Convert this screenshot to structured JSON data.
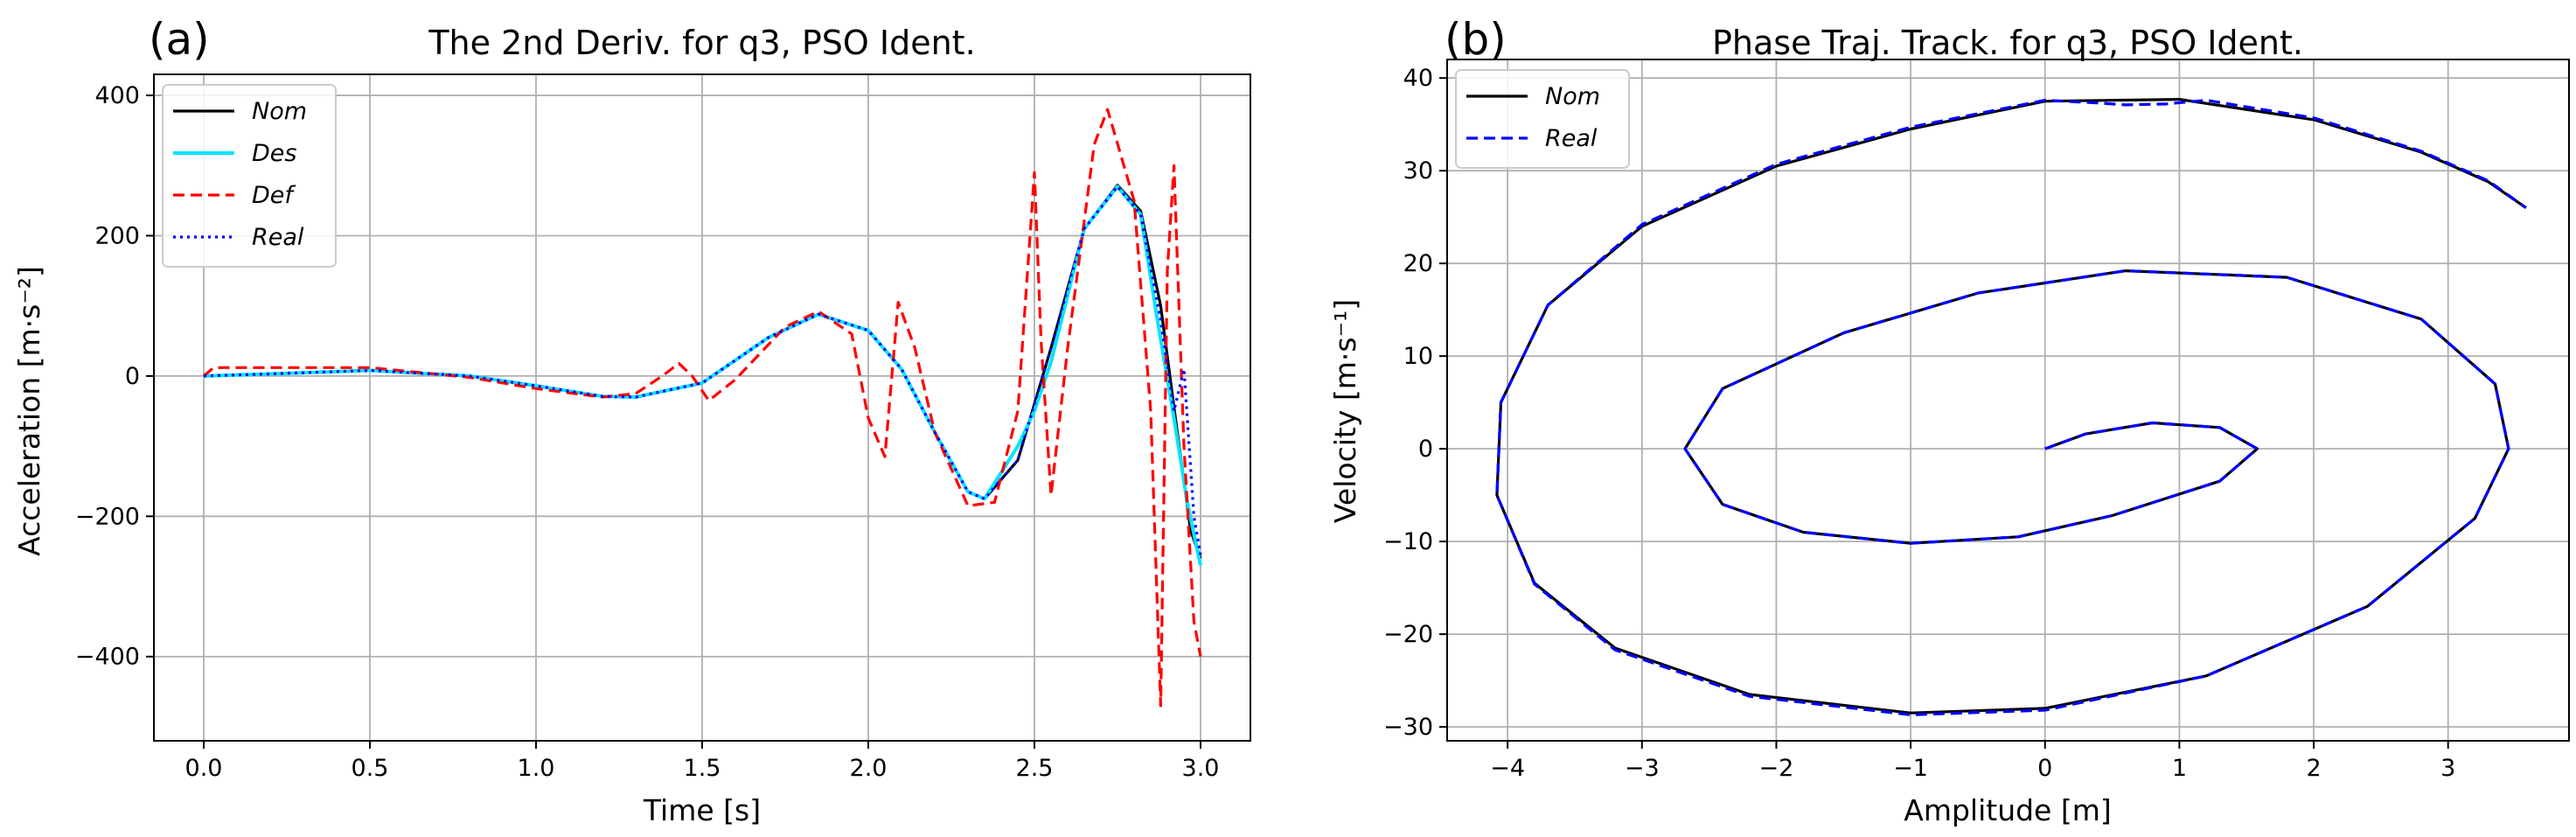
{
  "chart_data": [
    {
      "panel": "(a)",
      "type": "line",
      "title": "The 2nd Deriv. for q3, PSO Ident.",
      "xlabel": "Time [s]",
      "ylabel": "Acceleration [m·s⁻²]",
      "xlim": [
        -0.15,
        3.15
      ],
      "ylim": [
        -520,
        430
      ],
      "xticks": [
        0.0,
        0.5,
        1.0,
        1.5,
        2.0,
        2.5,
        3.0
      ],
      "xtick_labels": [
        "0.0",
        "0.5",
        "1.0",
        "1.5",
        "2.0",
        "2.5",
        "3.0"
      ],
      "yticks": [
        -400,
        -200,
        0,
        200,
        400
      ],
      "ytick_labels": [
        "−400",
        "−200",
        "0",
        "200",
        "400"
      ],
      "grid": true,
      "legend_position": "top-left",
      "series": [
        {
          "name": "Nom",
          "color": "#000000",
          "style": "solid",
          "x": [
            0.0,
            0.2,
            0.5,
            0.8,
            1.0,
            1.2,
            1.3,
            1.5,
            1.7,
            1.85,
            2.0,
            2.1,
            2.2,
            2.3,
            2.35,
            2.45,
            2.55,
            2.65,
            2.75,
            2.82,
            2.88,
            2.93,
            2.97,
            3.0
          ],
          "y": [
            0,
            3,
            8,
            0,
            -14,
            -29,
            -30,
            -10,
            55,
            88,
            65,
            10,
            -80,
            -165,
            -175,
            -120,
            40,
            210,
            272,
            235,
            100,
            -80,
            -220,
            -260
          ]
        },
        {
          "name": "Des",
          "color": "#00e5ff",
          "style": "solid",
          "x": [
            0.0,
            0.2,
            0.5,
            0.8,
            1.0,
            1.2,
            1.3,
            1.5,
            1.7,
            1.85,
            2.0,
            2.1,
            2.2,
            2.3,
            2.35,
            2.45,
            2.5,
            2.55,
            2.65,
            2.75,
            2.82,
            2.87,
            2.92,
            2.96,
            3.0
          ],
          "y": [
            0,
            3,
            8,
            0,
            -14,
            -29,
            -30,
            -10,
            55,
            88,
            65,
            10,
            -80,
            -165,
            -175,
            -100,
            -50,
            20,
            210,
            270,
            230,
            80,
            -60,
            -180,
            -270
          ]
        },
        {
          "name": "Def",
          "color": "#ff0000",
          "style": "dashed",
          "x": [
            0.0,
            0.03,
            0.2,
            0.5,
            0.8,
            1.0,
            1.2,
            1.3,
            1.38,
            1.43,
            1.47,
            1.52,
            1.6,
            1.75,
            1.85,
            1.95,
            2.0,
            2.05,
            2.09,
            2.14,
            2.2,
            2.3,
            2.38,
            2.45,
            2.5,
            2.52,
            2.55,
            2.6,
            2.68,
            2.72,
            2.8,
            2.85,
            2.88,
            2.9,
            2.92,
            2.95,
            2.98,
            3.0
          ],
          "y": [
            0,
            12,
            12,
            12,
            -2,
            -18,
            -30,
            -25,
            0,
            18,
            0,
            -35,
            -5,
            70,
            92,
            60,
            -60,
            -115,
            105,
            40,
            -80,
            -185,
            -180,
            -50,
            290,
            50,
            -170,
            40,
            330,
            380,
            250,
            -50,
            -470,
            150,
            300,
            -100,
            -350,
            -400
          ]
        },
        {
          "name": "Real",
          "color": "#0000ff",
          "style": "dotted",
          "x": [
            0.0,
            0.2,
            0.5,
            0.8,
            1.0,
            1.2,
            1.3,
            1.5,
            1.7,
            1.85,
            2.0,
            2.1,
            2.2,
            2.3,
            2.35,
            2.45,
            2.55,
            2.65,
            2.75,
            2.82,
            2.88,
            2.92,
            2.95,
            2.98,
            3.0
          ],
          "y": [
            0,
            3,
            8,
            0,
            -14,
            -29,
            -30,
            -10,
            55,
            88,
            65,
            10,
            -80,
            -165,
            -175,
            -120,
            40,
            210,
            270,
            230,
            80,
            -50,
            10,
            -200,
            -255
          ]
        }
      ]
    },
    {
      "panel": "(b)",
      "type": "line",
      "title": "Phase Traj. Track. for q3, PSO Ident.",
      "xlabel": "Amplitude [m]",
      "ylabel": "Velocity [m·s⁻¹]",
      "xlim": [
        -4.45,
        3.9
      ],
      "ylim": [
        -31.5,
        42
      ],
      "xticks": [
        -4,
        -3,
        -2,
        -1,
        0,
        1,
        2,
        3
      ],
      "xtick_labels": [
        "−4",
        "−3",
        "−2",
        "−1",
        "0",
        "1",
        "2",
        "3"
      ],
      "yticks": [
        -30,
        -20,
        -10,
        0,
        10,
        20,
        30,
        40
      ],
      "ytick_labels": [
        "−30",
        "−20",
        "−10",
        "0",
        "10",
        "20",
        "30",
        "40"
      ],
      "grid": true,
      "legend_position": "top-left",
      "series": [
        {
          "name": "Nom",
          "color": "#000000",
          "style": "solid",
          "x": [
            0,
            0.3,
            0.8,
            1.3,
            1.58,
            1.3,
            0.5,
            -0.2,
            -1.0,
            -1.8,
            -2.4,
            -2.68,
            -2.4,
            -1.5,
            -0.5,
            0.6,
            1.8,
            2.8,
            3.35,
            3.45,
            3.2,
            2.4,
            1.2,
            0.0,
            -1.0,
            -2.2,
            -3.2,
            -3.8,
            -4.08,
            -4.05,
            -3.7,
            -3.0,
            -2.0,
            -1.0,
            0.0,
            1.0,
            2.0,
            2.8,
            3.3,
            3.58
          ],
          "y": [
            0,
            1.6,
            2.8,
            2.3,
            0,
            -3.5,
            -7.2,
            -9.5,
            -10.2,
            -9.0,
            -6.0,
            0,
            6.5,
            12.5,
            16.8,
            19.2,
            18.5,
            14.0,
            7.0,
            0,
            -7.5,
            -17.0,
            -24.5,
            -28.0,
            -28.5,
            -26.5,
            -21.5,
            -14.5,
            -5.0,
            5.0,
            15.5,
            24.0,
            30.5,
            34.5,
            37.5,
            37.7,
            35.5,
            32.0,
            28.8,
            26.0
          ]
        },
        {
          "name": "Real",
          "color": "#0000ff",
          "style": "dashed",
          "x": [
            0,
            0.3,
            0.8,
            1.3,
            1.58,
            1.3,
            0.5,
            -0.2,
            -1.0,
            -1.8,
            -2.4,
            -2.68,
            -2.4,
            -1.5,
            -0.5,
            0.6,
            1.8,
            2.8,
            3.35,
            3.45,
            3.2,
            2.4,
            1.2,
            0.0,
            -1.0,
            -2.2,
            -3.2,
            -3.8,
            -4.08,
            -4.05,
            -3.7,
            -3.0,
            -2.0,
            -1.0,
            0.0,
            0.4,
            0.6,
            0.9,
            1.2,
            2.0,
            2.8,
            3.3,
            3.58
          ],
          "y": [
            0,
            1.6,
            2.8,
            2.3,
            0,
            -3.5,
            -7.2,
            -9.5,
            -10.2,
            -9.0,
            -6.0,
            0,
            6.5,
            12.5,
            16.8,
            19.2,
            18.5,
            14.0,
            7.0,
            0,
            -7.5,
            -17.0,
            -24.5,
            -28.2,
            -28.7,
            -26.7,
            -21.7,
            -14.6,
            -5.0,
            5.0,
            15.5,
            24.2,
            30.7,
            34.7,
            37.6,
            37.3,
            37.1,
            37.2,
            37.6,
            35.7,
            32.1,
            28.9,
            26.0
          ]
        }
      ]
    }
  ]
}
